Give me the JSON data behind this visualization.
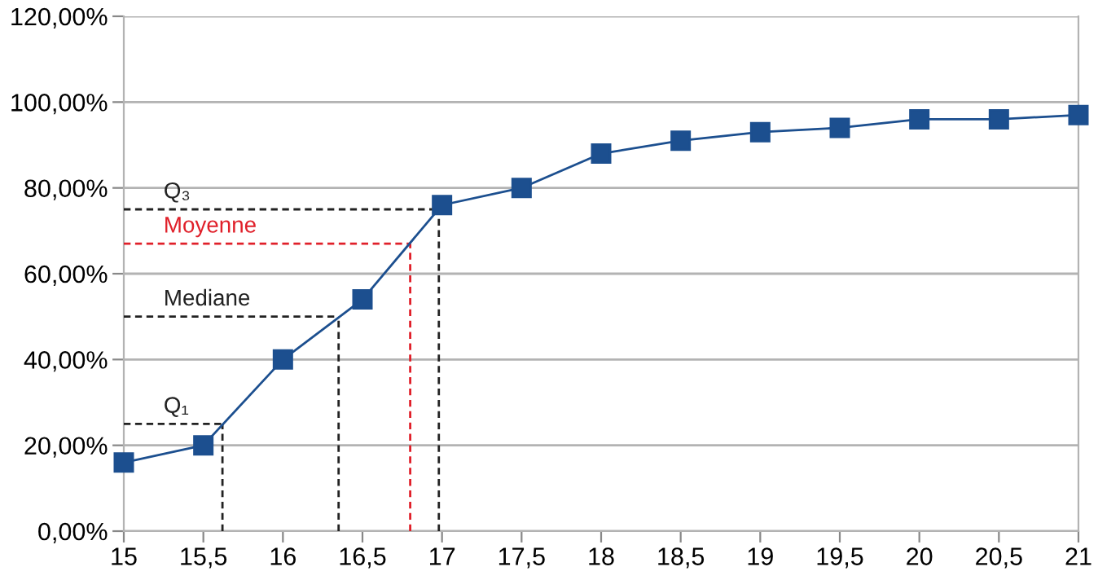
{
  "chart_data": {
    "type": "line",
    "x": [
      15,
      15.5,
      16,
      16.5,
      17,
      17.5,
      18,
      18.5,
      19,
      19.5,
      20,
      20.5,
      21
    ],
    "series": [
      {
        "color": "#1c4f8f",
        "values": [
          16,
          20,
          40,
          54,
          76,
          80,
          88,
          91,
          93,
          94,
          96,
          96,
          97
        ]
      }
    ],
    "marker": "square",
    "line_style": "solid",
    "xlim": [
      15,
      21
    ],
    "xticks": [
      15,
      {
        "value": 15.5,
        "label": "15,5"
      },
      16,
      {
        "value": 16.5,
        "label": "16,5"
      },
      17,
      {
        "value": 17.5,
        "label": "17,5"
      },
      18,
      {
        "value": 18.5,
        "label": "18,5"
      },
      19,
      {
        "value": 19.5,
        "label": "19,5"
      },
      20,
      {
        "value": 20.5,
        "label": "20,5"
      },
      21
    ],
    "ylim": [
      0,
      120
    ],
    "yticks": [
      {
        "value": 0,
        "label": "0,00%"
      },
      {
        "value": 20,
        "label": "20,00%"
      },
      {
        "value": 40,
        "label": "40,00%"
      },
      {
        "value": 60,
        "label": "60,00%"
      },
      {
        "value": 80,
        "label": "80,00%"
      },
      {
        "value": 100,
        "label": "100,00%"
      },
      {
        "value": 120,
        "label": "120,00%"
      }
    ],
    "grid": "y",
    "ref_lines": [
      {
        "axis": "y",
        "value": 25,
        "label": "Q₁",
        "color": "#222222",
        "line_style": "dashed"
      },
      {
        "axis": "x",
        "value": 15.62,
        "color": "#222222",
        "line_style": "dashed"
      },
      {
        "axis": "y",
        "value": 50,
        "label": "Mediane",
        "color": "#222222",
        "line_style": "dashed"
      },
      {
        "axis": "x",
        "value": 16.35,
        "color": "#222222",
        "line_style": "dashed"
      },
      {
        "axis": "y",
        "value": 67,
        "label": "Moyenne",
        "color": "#e0202a",
        "line_style": "dashed"
      },
      {
        "axis": "x",
        "value": 16.8,
        "color": "#e0202a",
        "line_style": "dashed"
      },
      {
        "axis": "y",
        "value": 75,
        "label": "Q₃",
        "color": "#222222",
        "line_style": "dashed"
      },
      {
        "axis": "x",
        "value": 16.98,
        "color": "#222222",
        "line_style": "dashed"
      }
    ]
  }
}
